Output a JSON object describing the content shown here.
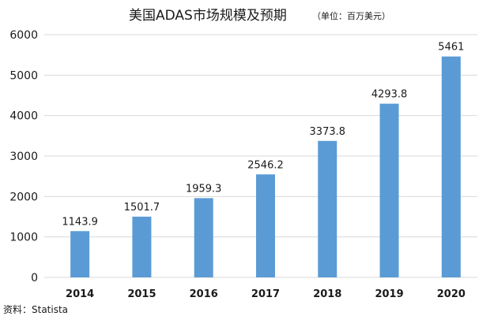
{
  "chart_data": {
    "type": "bar",
    "title": "美国ADAS市场规模及预期",
    "subtitle": "（单位：百万美元）",
    "xlabel": "",
    "ylabel": "",
    "categories": [
      "2014",
      "2015",
      "2016",
      "2017",
      "2018",
      "2019",
      "2020"
    ],
    "values": [
      1143.9,
      1501.7,
      1959.3,
      2546.2,
      3373.8,
      4293.8,
      5461
    ],
    "data_labels": [
      "1143.9",
      "1501.7",
      "1959.3",
      "2546.2",
      "3373.8",
      "4293.8",
      "5461"
    ],
    "ylim": [
      0,
      6000
    ],
    "yticks": [
      0,
      1000,
      2000,
      3000,
      4000,
      5000,
      6000
    ],
    "ytick_labels": [
      "0",
      "1000",
      "2000",
      "3000",
      "4000",
      "5000",
      "6000"
    ],
    "grid": true,
    "legend": "none",
    "bar_color": "#5b9bd5",
    "source": "资料：Statista"
  }
}
